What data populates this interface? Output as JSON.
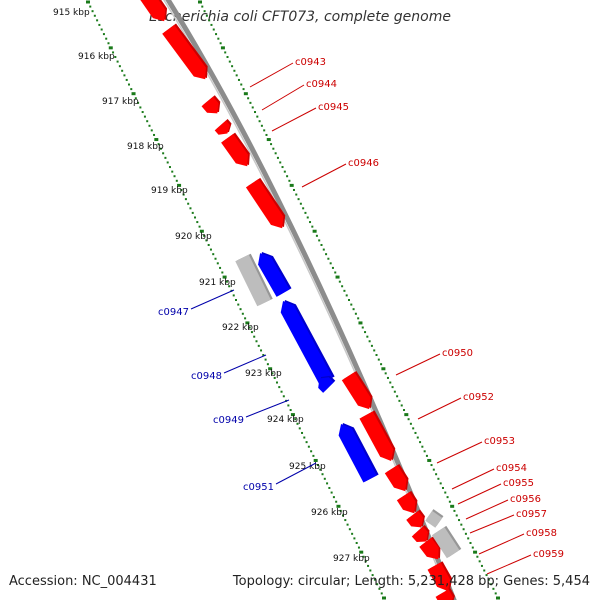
{
  "title": "Escherichia coli CFT073, complete genome",
  "footer": {
    "accession": "Accession: NC_004431",
    "summary": "Topology: circular; Length: 5,231,428 bp; Genes: 5,454"
  },
  "colors": {
    "forward_gene": "#ff0000",
    "reverse_gene": "#0000ff",
    "other_feature": "#bdbdbd",
    "backbone": "#8c8c8c",
    "ticks": "#1a7a1a",
    "forward_label": "#cc0000",
    "reverse_label": "#0000aa"
  },
  "kbp_labels": [
    "915 kbp",
    "916 kbp",
    "917 kbp",
    "918 kbp",
    "919 kbp",
    "920 kbp",
    "921 kbp",
    "922 kbp",
    "923 kbp",
    "924 kbp",
    "925 kbp",
    "926 kbp",
    "927 kbp"
  ],
  "forward_genes": [
    "c0943",
    "c0944",
    "c0945",
    "c0946",
    "c0950",
    "c0952",
    "c0953",
    "c0954",
    "c0955",
    "c0956",
    "c0957",
    "c0958",
    "c0959"
  ],
  "reverse_genes": [
    "c0947",
    "c0948",
    "c0949",
    "c0951"
  ]
}
